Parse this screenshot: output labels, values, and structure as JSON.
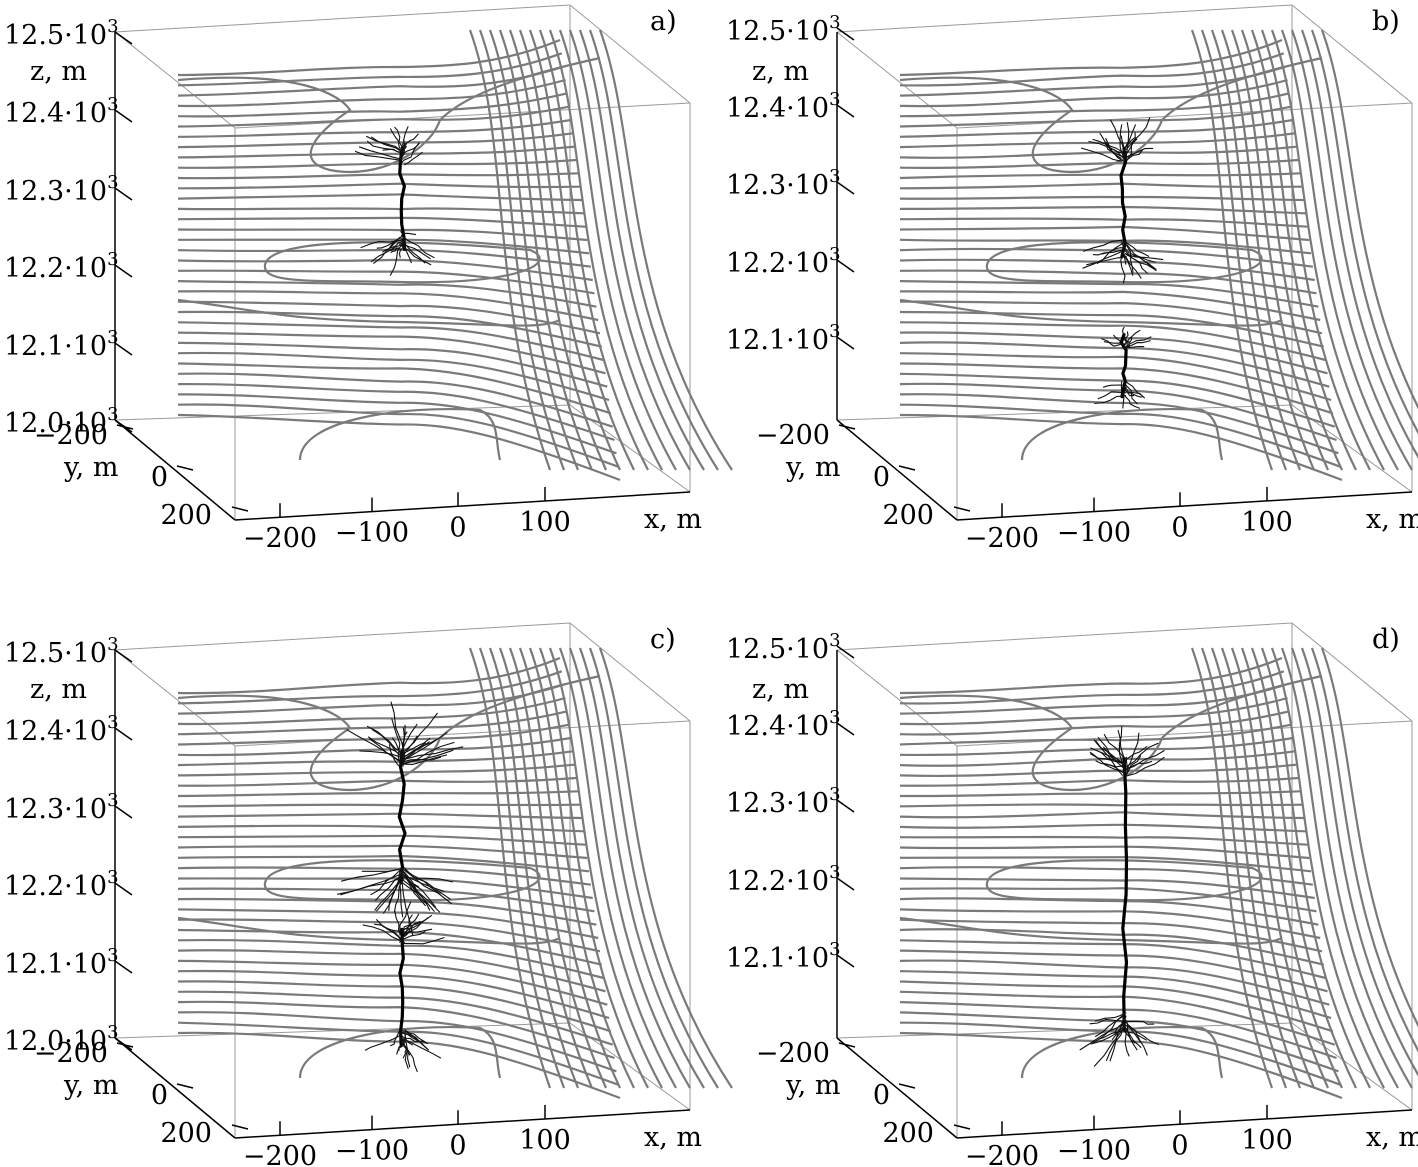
{
  "panels": [
    {
      "label": "a)",
      "z_ticks": [
        "12.5",
        "12.4",
        "12.3",
        "12.2",
        "12.1",
        "12.0"
      ],
      "z_exp": "3",
      "z_label": "z, m",
      "y_ticks": [
        "−200",
        "0",
        "200"
      ],
      "y_label": "y, m",
      "x_ticks": [
        "−200",
        "−100",
        "0",
        "100"
      ],
      "x_label": "x, m",
      "z_range": [
        12000,
        12500
      ],
      "x_range": [
        -250,
        250
      ],
      "y_range": [
        -250,
        250
      ],
      "trees": [
        {
          "top": 12350,
          "bottom": 12220,
          "spread": 1.0
        }
      ]
    },
    {
      "label": "b)",
      "z_ticks": [
        "12.5",
        "12.4",
        "12.3",
        "12.2",
        "12.1"
      ],
      "z_exp": "3",
      "z_label": "z, m",
      "y_ticks": [
        "−200",
        "0",
        "200"
      ],
      "y_label": "y, m",
      "x_ticks": [
        "−200",
        "−100",
        "0",
        "100"
      ],
      "x_label": "x, m",
      "z_range": [
        12000,
        12500
      ],
      "x_range": [
        -250,
        250
      ],
      "y_range": [
        -250,
        250
      ],
      "trees": [
        {
          "top": 12350,
          "bottom": 12210,
          "spread": 1.1
        },
        {
          "top": 12110,
          "bottom": 12030,
          "spread": 0.7
        }
      ]
    },
    {
      "label": "c)",
      "z_ticks": [
        "12.5",
        "12.4",
        "12.3",
        "12.2",
        "12.1",
        "12.0"
      ],
      "z_exp": "3",
      "z_label": "z, m",
      "y_ticks": [
        "−200",
        "0",
        "200"
      ],
      "y_label": "y, m",
      "x_ticks": [
        "−200",
        "−100",
        "0",
        "100"
      ],
      "x_label": "x, m",
      "z_range": [
        12000,
        12500
      ],
      "x_range": [
        -250,
        250
      ],
      "y_range": [
        -250,
        250
      ],
      "trees": [
        {
          "top": 12370,
          "bottom": 12200,
          "spread": 1.6
        },
        {
          "top": 12140,
          "bottom": 11990,
          "spread": 1.0
        }
      ]
    },
    {
      "label": "d)",
      "z_ticks": [
        "12.5",
        "12.4",
        "12.3",
        "12.2",
        "12.1"
      ],
      "z_exp": "3",
      "z_label": "z, m",
      "y_ticks": [
        "−200",
        "0",
        "200"
      ],
      "y_label": "y, m",
      "x_ticks": [
        "−200",
        "−100",
        "0",
        "100"
      ],
      "x_label": "x, m",
      "z_range": [
        12000,
        12500
      ],
      "x_range": [
        -250,
        250
      ],
      "y_range": [
        -250,
        250
      ],
      "trees": [
        {
          "top": 12360,
          "bottom": 12010,
          "spread": 1.3
        }
      ]
    }
  ]
}
